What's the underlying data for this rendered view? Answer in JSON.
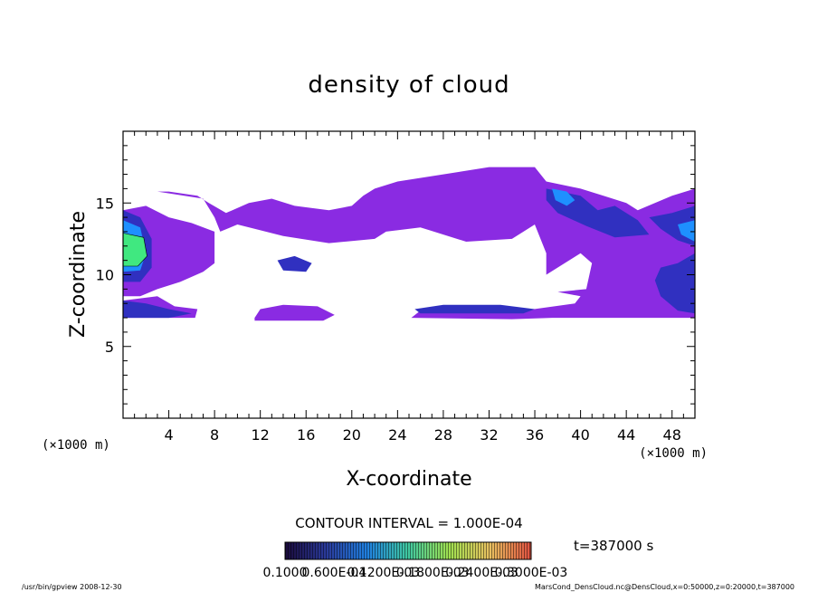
{
  "chart_data": {
    "type": "heatmap",
    "title": "density of cloud",
    "xlabel": "X-coordinate",
    "ylabel": "Z-coordinate",
    "x_unit": "(×1000 m)",
    "y_unit": "(×1000 m)",
    "xlim": [
      0,
      50
    ],
    "ylim": [
      0,
      20
    ],
    "x_ticks": [
      4,
      8,
      12,
      16,
      20,
      24,
      28,
      32,
      36,
      40,
      44,
      48
    ],
    "y_ticks": [
      5,
      10,
      15
    ],
    "contour_interval_text": "CONTOUR INTERVAL = 1.000E-04",
    "time_text": "t=387000 s",
    "colorbar_labels": [
      "0.1000",
      "0.600E-04",
      "0.1200E-03",
      "0.1800E-03",
      "0.2400E-03",
      "0.3000E-03"
    ],
    "colorbar_colors": [
      "#1a0a3a",
      "#2a3a9a",
      "#2080e0",
      "#40c8a0",
      "#a0e050",
      "#e8c060",
      "#e05040"
    ],
    "field_colors": {
      "lowest": "#8a2be2",
      "low": "#3030c0",
      "mid": "#1e90ff",
      "high": "#40e880"
    },
    "regions": [
      {
        "level": "lowest",
        "points": [
          [
            0,
            15.8
          ],
          [
            3,
            15.8
          ],
          [
            7,
            15.3
          ],
          [
            8,
            14.0
          ],
          [
            8.5,
            13.0
          ],
          [
            10,
            13.5
          ],
          [
            14,
            12.7
          ],
          [
            18,
            12.2
          ],
          [
            22,
            12.5
          ],
          [
            23,
            13.0
          ],
          [
            26,
            13.3
          ],
          [
            30,
            12.3
          ],
          [
            34,
            12.5
          ],
          [
            36,
            13.5
          ],
          [
            37,
            11.5
          ],
          [
            37,
            10.0
          ],
          [
            40,
            11.5
          ],
          [
            41,
            10.8
          ],
          [
            40.5,
            9.0
          ],
          [
            38,
            8.8
          ],
          [
            40,
            8.5
          ],
          [
            39.5,
            8.0
          ],
          [
            35,
            7.5
          ],
          [
            26,
            7.5
          ],
          [
            25.2,
            7.0
          ],
          [
            34,
            6.9
          ],
          [
            37.5,
            7.0
          ],
          [
            40,
            7.0
          ],
          [
            46,
            7.0
          ],
          [
            50,
            7.0
          ],
          [
            50,
            16.0
          ],
          [
            48,
            15.5
          ],
          [
            45,
            14.5
          ],
          [
            44,
            15.0
          ],
          [
            42,
            15.5
          ],
          [
            40,
            16.0
          ],
          [
            37,
            16.5
          ],
          [
            36,
            17.5
          ],
          [
            32,
            17.5
          ],
          [
            28,
            17.0
          ],
          [
            24,
            16.5
          ],
          [
            22,
            16.0
          ],
          [
            21,
            15.5
          ],
          [
            20,
            14.8
          ],
          [
            18,
            14.5
          ],
          [
            15,
            14.8
          ],
          [
            13,
            15.3
          ],
          [
            11,
            15.0
          ],
          [
            9,
            14.3
          ],
          [
            7.5,
            15.0
          ],
          [
            6.5,
            15.5
          ],
          [
            4,
            15.8
          ],
          [
            1,
            15.8
          ],
          [
            0,
            15.8
          ]
        ]
      },
      {
        "level": "lowest",
        "points": [
          [
            0,
            14.5
          ],
          [
            2,
            14.8
          ],
          [
            4,
            14.0
          ],
          [
            6,
            13.6
          ],
          [
            8,
            13.0
          ],
          [
            8,
            10.8
          ],
          [
            7,
            10.2
          ],
          [
            5,
            9.5
          ],
          [
            3,
            9.0
          ],
          [
            1.5,
            8.5
          ],
          [
            0,
            8.5
          ]
        ]
      },
      {
        "level": "lowest",
        "points": [
          [
            0,
            8.2
          ],
          [
            3,
            8.5
          ],
          [
            4.5,
            7.8
          ],
          [
            6.5,
            7.6
          ],
          [
            6.3,
            7.0
          ],
          [
            0,
            7.0
          ]
        ]
      },
      {
        "level": "lowest",
        "points": [
          [
            11.5,
            7.0
          ],
          [
            12,
            7.6
          ],
          [
            14,
            7.9
          ],
          [
            17,
            7.8
          ],
          [
            18.5,
            7.2
          ],
          [
            17.5,
            6.8
          ],
          [
            11.5,
            6.8
          ]
        ]
      },
      {
        "level": "low",
        "points": [
          [
            0,
            14.5
          ],
          [
            1.5,
            14.0
          ],
          [
            2.5,
            12.5
          ],
          [
            2.5,
            10.5
          ],
          [
            1.5,
            9.5
          ],
          [
            0,
            9.5
          ]
        ]
      },
      {
        "level": "low",
        "points": [
          [
            0,
            8.2
          ],
          [
            2,
            8.0
          ],
          [
            4,
            7.6
          ],
          [
            6,
            7.3
          ],
          [
            4,
            7.0
          ],
          [
            0,
            7.0
          ]
        ]
      },
      {
        "level": "low",
        "points": [
          [
            37,
            16.0
          ],
          [
            40,
            15.5
          ],
          [
            41.5,
            14.5
          ],
          [
            43,
            14.8
          ],
          [
            45,
            13.8
          ],
          [
            46,
            12.8
          ],
          [
            43,
            12.6
          ],
          [
            40.5,
            13.4
          ],
          [
            38,
            14.3
          ],
          [
            37,
            15.2
          ]
        ]
      },
      {
        "level": "low",
        "points": [
          [
            46,
            14.0
          ],
          [
            48,
            14.3
          ],
          [
            50,
            14.8
          ],
          [
            50,
            12.0
          ],
          [
            48.5,
            12.4
          ],
          [
            47,
            13.2
          ]
        ]
      },
      {
        "level": "low",
        "points": [
          [
            47,
            10.5
          ],
          [
            48.5,
            10.8
          ],
          [
            50,
            11.5
          ],
          [
            50,
            7.3
          ],
          [
            48.5,
            7.5
          ],
          [
            47,
            8.5
          ],
          [
            46.5,
            9.6
          ]
        ]
      },
      {
        "level": "low",
        "points": [
          [
            13.5,
            11.0
          ],
          [
            15,
            11.3
          ],
          [
            16.5,
            10.8
          ],
          [
            16,
            10.2
          ],
          [
            14,
            10.3
          ]
        ]
      },
      {
        "level": "low",
        "points": [
          [
            25.5,
            7.6
          ],
          [
            28,
            7.9
          ],
          [
            33,
            7.9
          ],
          [
            36,
            7.6
          ],
          [
            35,
            7.3
          ],
          [
            30,
            7.3
          ],
          [
            26,
            7.3
          ]
        ]
      },
      {
        "level": "mid",
        "points": [
          [
            0,
            13.8
          ],
          [
            1.5,
            13.3
          ],
          [
            2,
            11.5
          ],
          [
            1.5,
            10.3
          ],
          [
            0,
            10.2
          ]
        ]
      },
      {
        "level": "mid",
        "points": [
          [
            37.5,
            16.0
          ],
          [
            38.8,
            15.8
          ],
          [
            39.5,
            15.2
          ],
          [
            38.8,
            14.8
          ],
          [
            37.8,
            15.2
          ]
        ]
      },
      {
        "level": "mid",
        "points": [
          [
            48.5,
            13.5
          ],
          [
            50,
            13.8
          ],
          [
            50,
            12.3
          ],
          [
            48.8,
            12.8
          ]
        ]
      },
      {
        "level": "high",
        "points": [
          [
            0,
            12.9
          ],
          [
            1.8,
            12.6
          ],
          [
            2.1,
            11.3
          ],
          [
            1.3,
            10.6
          ],
          [
            0,
            10.6
          ]
        ]
      }
    ]
  },
  "footer": {
    "left": "/usr/bin/gpview   2008-12-30",
    "right": "MarsCond_DensCloud.nc@DensCloud,x=0:50000,z=0:20000,t=387000"
  }
}
